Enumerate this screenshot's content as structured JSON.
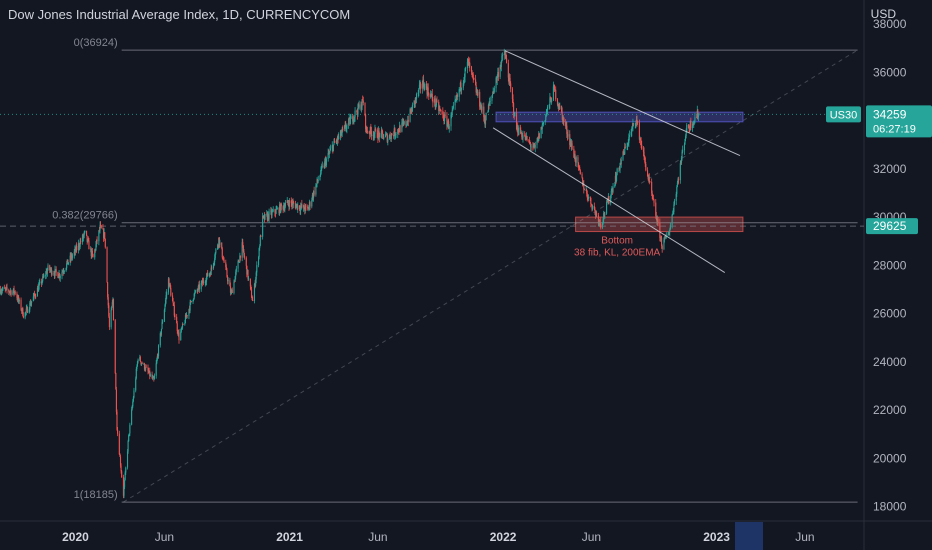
{
  "header": {
    "title": "Dow Jones Industrial Average Index, 1D, CURRENCYCOM"
  },
  "axis": {
    "currency": "USD"
  },
  "chart_data": {
    "type": "candlestick",
    "symbol": "US30",
    "title": "Dow Jones Industrial Average Index, 1D, CURRENCYCOM",
    "y_ticks": [
      18000,
      20000,
      22000,
      24000,
      26000,
      28000,
      30000,
      32000,
      34000,
      36000,
      38000
    ],
    "y_tick_labels": [
      "18000",
      "20000",
      "22000",
      "24000",
      "26000",
      "28000",
      "30000",
      "32000",
      "34000",
      "36000",
      "38000"
    ],
    "ylim": [
      17400,
      39000
    ],
    "x_ticks": [
      {
        "label": "2020",
        "date": "2020-01-01",
        "bold": true
      },
      {
        "label": "Jun",
        "date": "2020-06-01",
        "bold": false
      },
      {
        "label": "2021",
        "date": "2021-01-01",
        "bold": true
      },
      {
        "label": "Jun",
        "date": "2021-06-01",
        "bold": false
      },
      {
        "label": "2022",
        "date": "2022-01-01",
        "bold": true
      },
      {
        "label": "Jun",
        "date": "2022-06-01",
        "bold": false
      },
      {
        "label": "2023",
        "date": "2023-01-01",
        "bold": true
      },
      {
        "label": "Jun",
        "date": "2023-06-01",
        "bold": false
      }
    ],
    "xlim": [
      "2019-08-25",
      "2023-09-10"
    ],
    "price_path": [
      [
        "2019-08-25",
        27000
      ],
      [
        "2019-09-20",
        26900
      ],
      [
        "2019-10-05",
        25900
      ],
      [
        "2019-10-25",
        26850
      ],
      [
        "2019-11-15",
        27850
      ],
      [
        "2019-12-05",
        27600
      ],
      [
        "2019-12-31",
        28550
      ],
      [
        "2020-01-17",
        29300
      ],
      [
        "2020-01-31",
        28300
      ],
      [
        "2020-02-12",
        29550
      ],
      [
        "2020-02-20",
        29200
      ],
      [
        "2020-02-28",
        25400
      ],
      [
        "2020-03-05",
        26600
      ],
      [
        "2020-03-12",
        21300
      ],
      [
        "2020-03-23",
        18500
      ],
      [
        "2020-04-01",
        20900
      ],
      [
        "2020-04-17",
        24200
      ],
      [
        "2020-05-14",
        23200
      ],
      [
        "2020-06-08",
        27400
      ],
      [
        "2020-06-26",
        25000
      ],
      [
        "2020-07-20",
        26700
      ],
      [
        "2020-08-20",
        27800
      ],
      [
        "2020-09-02",
        29100
      ],
      [
        "2020-09-23",
        26800
      ],
      [
        "2020-10-12",
        28800
      ],
      [
        "2020-10-30",
        26500
      ],
      [
        "2020-11-16",
        29900
      ],
      [
        "2020-12-31",
        30600
      ],
      [
        "2021-02-01",
        30300
      ],
      [
        "2021-02-24",
        31900
      ],
      [
        "2021-03-15",
        32900
      ],
      [
        "2021-04-15",
        34000
      ],
      [
        "2021-05-07",
        34800
      ],
      [
        "2021-05-12",
        33600
      ],
      [
        "2021-06-18",
        33300
      ],
      [
        "2021-07-20",
        33900
      ],
      [
        "2021-08-16",
        35600
      ],
      [
        "2021-09-30",
        33800
      ],
      [
        "2021-11-02",
        36400
      ],
      [
        "2021-12-01",
        34000
      ],
      [
        "2021-12-29",
        36450
      ],
      [
        "2022-01-04",
        36800
      ],
      [
        "2022-01-24",
        33700
      ],
      [
        "2022-02-24",
        32800
      ],
      [
        "2022-03-29",
        35300
      ],
      [
        "2022-05-20",
        31200
      ],
      [
        "2022-06-17",
        29700
      ],
      [
        "2022-07-20",
        32200
      ],
      [
        "2022-08-16",
        34100
      ],
      [
        "2022-09-30",
        28800
      ],
      [
        "2022-10-13",
        29500
      ],
      [
        "2022-11-10",
        33600
      ],
      [
        "2022-12-01",
        34300
      ],
      [
        "2022-12-02",
        34259
      ]
    ],
    "horizontal_lines": [
      {
        "name": "fib-0",
        "value": 36924,
        "label": "0(36924)",
        "from": "2020-03-20",
        "to": "2023-08-30"
      },
      {
        "name": "fib-0.382",
        "value": 29766,
        "label": "0.382(29766)",
        "from": "2020-03-20",
        "to": "2023-08-30"
      },
      {
        "name": "fib-1",
        "value": 18185,
        "label": "1(18185)",
        "from": "2020-03-20",
        "to": "2023-08-30"
      }
    ],
    "fib_diagonal": [
      [
        "2020-03-23",
        18185
      ],
      [
        "2023-08-30",
        36924
      ]
    ],
    "zones": [
      {
        "name": "resistance-zone",
        "from": "2021-12-20",
        "to": "2023-02-15",
        "top": 34350,
        "bottom": 33950,
        "color": "#5b5bd6"
      },
      {
        "name": "support-zone",
        "from": "2022-05-05",
        "to": "2023-02-15",
        "top": 30000,
        "bottom": 29400,
        "color": "#d9534f"
      }
    ],
    "channel_lines": [
      {
        "name": "channel-upper",
        "points": [
          [
            "2022-01-04",
            36900
          ],
          [
            "2023-02-10",
            32550
          ]
        ]
      },
      {
        "name": "channel-lower",
        "points": [
          [
            "2021-12-15",
            33700
          ],
          [
            "2023-01-15",
            27700
          ]
        ]
      }
    ],
    "dashed_price_line": 29625,
    "annotation": {
      "line1": "Bottom",
      "line2": "38 fib, KL, 200EMA",
      "date": "2022-07-15",
      "value": 28700,
      "color": "#e05a5a"
    },
    "price_labels": [
      {
        "name": "current-price",
        "value": 34259,
        "text": "34259",
        "countdown": "06:27:19",
        "symbol": "US30",
        "color": "#26a69a"
      },
      {
        "name": "level-price",
        "value": 29625,
        "text": "29625",
        "color": "#26a69a"
      }
    ],
    "colors": {
      "background": "#131722",
      "up": "#26a69a",
      "down": "#ef5350",
      "text": "#b2b5be",
      "grid_line": "#b2b5be"
    }
  }
}
